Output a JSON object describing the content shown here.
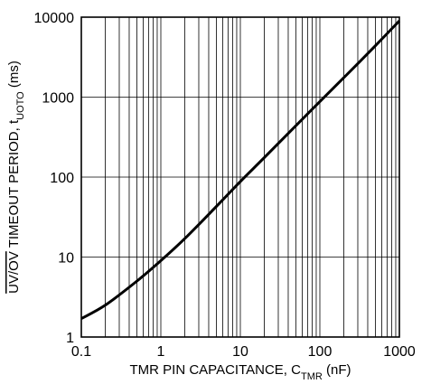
{
  "chart_data": {
    "type": "line",
    "title": "",
    "xlabel": {
      "parts": [
        {
          "text": "TMR PIN CAPACITANCE, C",
          "style": "normal"
        },
        {
          "text": "TMR",
          "style": "sub"
        },
        {
          "text": " (nF)",
          "style": "normal"
        }
      ]
    },
    "ylabel": {
      "parts": [
        {
          "text": "UV/OV",
          "style": "overline"
        },
        {
          "text": " TIMEOUT PERIOD, t",
          "style": "normal"
        },
        {
          "text": "UOTO",
          "style": "sub"
        },
        {
          "text": " (ms)",
          "style": "normal"
        }
      ]
    },
    "x_scale": "log",
    "y_scale": "log",
    "xlim": [
      0.1,
      1000
    ],
    "ylim": [
      1,
      10000
    ],
    "x_ticks": [
      0.1,
      1,
      10,
      100,
      1000
    ],
    "x_tick_labels": [
      "0.1",
      "1",
      "10",
      "100",
      "1000"
    ],
    "y_ticks": [
      1,
      10,
      100,
      1000,
      10000
    ],
    "y_tick_labels": [
      "1",
      "10",
      "100",
      "1000",
      "10000"
    ],
    "grid": true,
    "line_color": "#000000",
    "series": [
      {
        "x": [
          0.1,
          0.2,
          0.5,
          1,
          2,
          5,
          10,
          20,
          50,
          100,
          200,
          500,
          1000
        ],
        "y": [
          1.7,
          2.5,
          5,
          9,
          17,
          43,
          88,
          175,
          440,
          880,
          1750,
          4400,
          9000
        ]
      }
    ]
  }
}
